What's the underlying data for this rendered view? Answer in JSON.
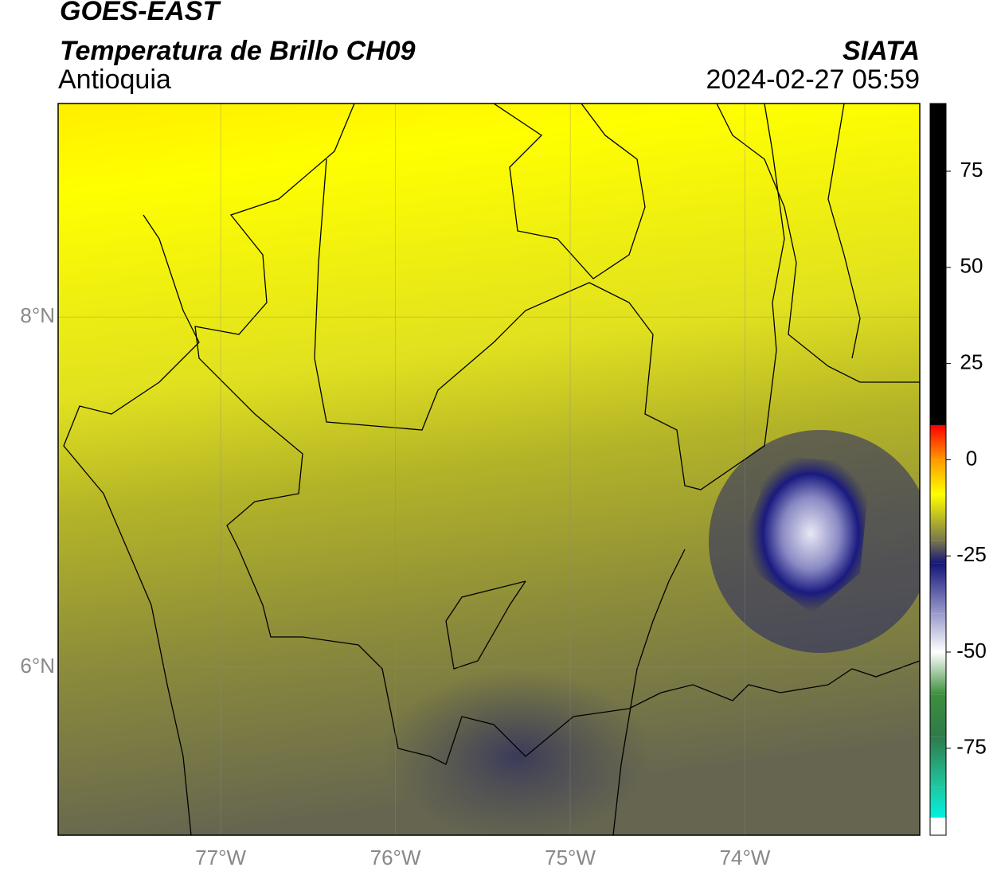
{
  "chart_data": {
    "type": "map",
    "title": "GOES-EAST",
    "subtitle": "Temperatura de Brillo CH09",
    "region": "Antioquia",
    "source": "SIATA",
    "timestamp": "2024-02-27 05:59",
    "xlim": [
      -77.93,
      -73.0
    ],
    "ylim": [
      5.04,
      9.22
    ],
    "xticks": [
      {
        "value": -77,
        "label": "77°W"
      },
      {
        "value": -76,
        "label": "76°W"
      },
      {
        "value": -75,
        "label": "75°W"
      },
      {
        "value": -74,
        "label": "74°W"
      }
    ],
    "yticks": [
      {
        "value": 8,
        "label": "8°N"
      },
      {
        "value": 6,
        "label": "6°N"
      }
    ],
    "grid": true,
    "colorbar": {
      "lim": [
        -97.6,
        92.6
      ],
      "ticks": [
        75,
        50,
        25,
        0,
        -25,
        -50,
        -75
      ],
      "colormap": [
        {
          "value": 92.6,
          "color": "#000000"
        },
        {
          "value": 9,
          "color": "#000000"
        },
        {
          "value": 8.9,
          "color": "#ff0000"
        },
        {
          "value": 0,
          "color": "#ff9900"
        },
        {
          "value": -9,
          "color": "#ffff00"
        },
        {
          "value": -21,
          "color": "#77774a"
        },
        {
          "value": -27,
          "color": "#15157a"
        },
        {
          "value": -40,
          "color": "#9a9acc"
        },
        {
          "value": -50,
          "color": "#ffffff"
        },
        {
          "value": -61,
          "color": "#3d8f3d"
        },
        {
          "value": -72,
          "color": "#2f7a4a"
        },
        {
          "value": -85,
          "color": "#1ec8a0"
        },
        {
          "value": -93,
          "color": "#00f0e0"
        },
        {
          "value": -93.1,
          "color": "#ffffff"
        },
        {
          "value": -97.6,
          "color": "#ffffff"
        }
      ]
    }
  }
}
